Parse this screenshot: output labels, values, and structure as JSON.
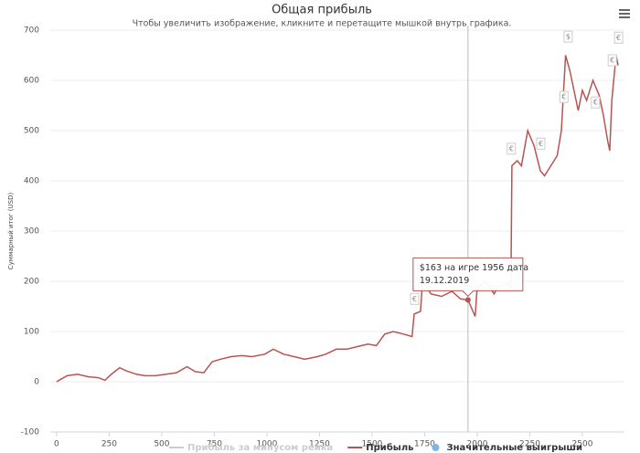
{
  "chart_data": {
    "type": "line",
    "title": "Общая прибыль",
    "subtitle": "Чтобы увеличить изображение, кликните и перетащите мышкой внутрь графика.",
    "y_label": "Суммарный итог (USD)",
    "xlim": [
      -30,
      2700
    ],
    "ylim": [
      -100,
      700
    ],
    "xticks": [
      0,
      250,
      500,
      750,
      1000,
      1250,
      1500,
      1750,
      2000,
      2250,
      2500
    ],
    "yticks": [
      -100,
      0,
      100,
      200,
      300,
      400,
      500,
      600,
      700
    ],
    "grid": true,
    "crosshair_x": 1956,
    "tooltip": {
      "lines": [
        "$163 на игре 1956 дата",
        "19.12.2019"
      ]
    },
    "x": [
      0,
      20,
      50,
      100,
      150,
      200,
      230,
      260,
      300,
      330,
      380,
      420,
      470,
      520,
      570,
      620,
      660,
      700,
      740,
      780,
      830,
      880,
      930,
      990,
      1030,
      1080,
      1130,
      1180,
      1240,
      1280,
      1330,
      1380,
      1430,
      1480,
      1520,
      1560,
      1600,
      1650,
      1690,
      1700,
      1730,
      1740,
      1780,
      1830,
      1880,
      1920,
      1956,
      1990,
      2000,
      2040,
      2080,
      2100,
      2150,
      2160,
      2165,
      2190,
      2210,
      2240,
      2270,
      2300,
      2320,
      2350,
      2380,
      2400,
      2420,
      2440,
      2460,
      2480,
      2500,
      2520,
      2550,
      2580,
      2600,
      2620,
      2630,
      2640,
      2660,
      2670
    ],
    "series": [
      {
        "name": "Прибыль за минусом рейка",
        "color": "#cccccc",
        "visible": false
      },
      {
        "name": "Прибыль",
        "color": "#b85450",
        "visible": true,
        "values": [
          0,
          5,
          12,
          15,
          10,
          8,
          3,
          15,
          28,
          22,
          15,
          12,
          12,
          15,
          18,
          30,
          20,
          18,
          40,
          45,
          50,
          52,
          50,
          55,
          65,
          55,
          50,
          45,
          50,
          55,
          65,
          65,
          70,
          75,
          72,
          95,
          100,
          95,
          90,
          135,
          140,
          200,
          175,
          170,
          180,
          165,
          163,
          130,
          190,
          200,
          175,
          190,
          195,
          185,
          430,
          440,
          430,
          500,
          470,
          420,
          410,
          430,
          450,
          500,
          650,
          620,
          580,
          540,
          580,
          560,
          600,
          570,
          530,
          480,
          460,
          560,
          650,
          630
        ]
      },
      {
        "name": "Значительные выигрыши",
        "color": "#7cb5ec",
        "visible": true,
        "type": "flags",
        "x": [
          1700,
          2160,
          2300,
          2410,
          2430,
          2560,
          2640,
          2670
        ],
        "values": [
          165,
          464,
          474,
          567,
          687,
          556,
          640,
          685
        ],
        "symbols": [
          "€",
          "€",
          "€",
          "€",
          "$",
          "€",
          "€",
          "€"
        ]
      }
    ]
  }
}
